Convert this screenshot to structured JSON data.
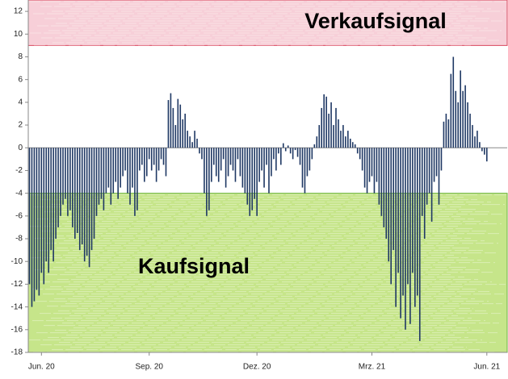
{
  "chart_data": {
    "type": "bar",
    "categories": [
      null,
      null,
      null,
      null,
      null,
      "Jun. 20",
      null,
      null,
      null,
      null,
      null,
      null,
      null,
      null,
      null,
      null,
      null,
      null,
      null,
      null,
      null,
      null,
      null,
      null,
      null,
      null,
      null,
      null,
      null,
      null,
      null,
      null,
      null,
      null,
      null,
      null,
      null,
      null,
      null,
      null,
      null,
      null,
      null,
      null,
      null,
      null,
      null,
      null,
      null,
      null,
      "Sep. 20",
      null,
      null,
      null,
      null,
      null,
      null,
      null,
      null,
      null,
      null,
      null,
      null,
      null,
      null,
      null,
      null,
      null,
      null,
      null,
      null,
      null,
      null,
      null,
      null,
      null,
      null,
      null,
      null,
      null,
      null,
      null,
      null,
      null,
      null,
      null,
      null,
      null,
      null,
      null,
      null,
      null,
      null,
      null,
      null,
      "Dez. 20",
      null,
      null,
      null,
      null,
      null,
      null,
      null,
      null,
      null,
      null,
      null,
      null,
      null,
      null,
      null,
      null,
      null,
      null,
      null,
      null,
      null,
      null,
      null,
      null,
      null,
      null,
      null,
      null,
      null,
      null,
      null,
      null,
      null,
      null,
      null,
      null,
      null,
      null,
      null,
      null,
      null,
      null,
      null,
      null,
      null,
      null,
      null,
      "Mrz. 21",
      null,
      null,
      null,
      null,
      null,
      null,
      null,
      null,
      null,
      null,
      null,
      null,
      null,
      null,
      null,
      null,
      null,
      null,
      null,
      null,
      null,
      null,
      null,
      null,
      null,
      null,
      null,
      null,
      null,
      null,
      null,
      null,
      null,
      null,
      null,
      null,
      null,
      null,
      null,
      null,
      null,
      null,
      null,
      null,
      null,
      null,
      null,
      "Jun. 21",
      null,
      null,
      null,
      null,
      null,
      null,
      null,
      null
    ],
    "values": [
      -12,
      -14,
      -13.5,
      -12.5,
      -13,
      -11,
      -12,
      -10,
      -11,
      -9,
      -10,
      -8,
      -7,
      -6,
      -5,
      -4.5,
      -6,
      -5.5,
      -7,
      -8,
      -7.5,
      -9,
      -8.5,
      -10,
      -9.5,
      -10.5,
      -9,
      -8,
      -6,
      -5,
      -4.5,
      -5.5,
      -4,
      -3.5,
      -5,
      -4,
      -3,
      -4.5,
      -3.5,
      -2.5,
      -2,
      -4,
      -5,
      -3.5,
      -6,
      -5.5,
      -2,
      -1.5,
      -3,
      -2.5,
      -1,
      -2,
      -1.5,
      -3,
      -2,
      -1,
      -1.5,
      -2.5,
      4.2,
      4.8,
      3.5,
      2,
      4.3,
      3.8,
      2.5,
      3,
      1.5,
      1,
      0.5,
      1.5,
      0.8,
      -0.5,
      -1,
      -4,
      -6,
      -5.5,
      -3,
      -1.5,
      -2.5,
      -3,
      -2,
      -1,
      -3.5,
      -2.5,
      -1.5,
      -2,
      -3,
      -1,
      -2.5,
      -3.5,
      -4,
      -5,
      -6,
      -5.5,
      -4.5,
      -6,
      -3,
      -2,
      -3.5,
      -1.5,
      -4,
      -2.5,
      -1,
      -2,
      -0.5,
      -1.5,
      0.4,
      -0.3,
      0.2,
      -0.5,
      -1,
      -0.2,
      -0.8,
      -1.5,
      -3.5,
      -4,
      -2.5,
      -2,
      -1,
      0.3,
      1,
      2,
      3.5,
      4.7,
      4.5,
      3,
      4,
      2,
      3.5,
      2.5,
      1.5,
      2,
      1,
      1.5,
      0.8,
      0.5,
      0.3,
      -0.5,
      -1,
      -2,
      -3.5,
      -4,
      -3,
      -2.5,
      -4,
      -3,
      -5,
      -6,
      -7,
      -8,
      -10,
      -12,
      -9,
      -14,
      -11,
      -15,
      -13,
      -16,
      -12,
      -15.5,
      -11,
      -14,
      -13,
      -17,
      -6,
      -8,
      -5,
      -4,
      -6.5,
      -3,
      -2.5,
      -5,
      -2,
      2.3,
      3,
      2.5,
      6.5,
      8,
      5,
      4,
      6.8,
      5,
      5.5,
      4,
      3,
      2,
      1,
      1.5,
      0.5,
      -0.3,
      -0.6,
      -1.2,
      null,
      null,
      null,
      null,
      null,
      null,
      null,
      null
    ],
    "color": "#1f3864",
    "ylim": [
      -18,
      13
    ],
    "yticks": [
      12,
      10,
      8,
      6,
      4,
      2,
      0,
      -2,
      -4,
      -6,
      -8,
      -10,
      -12,
      -14,
      -16,
      -18
    ],
    "bands": [
      {
        "label": "Verkaufsignal",
        "from": 9,
        "to": 13,
        "color": "#f7cfd8",
        "border": "#d9475e"
      },
      {
        "label": "Kaufsignal",
        "from": -18,
        "to": -4,
        "color": "#c6e58a",
        "border": "#6db33f"
      }
    ]
  }
}
